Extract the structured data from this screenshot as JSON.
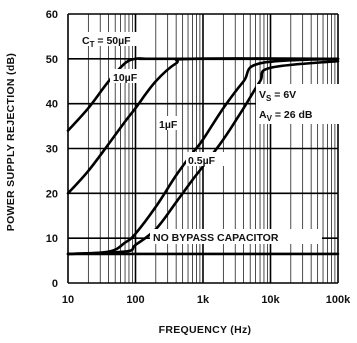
{
  "chart_data": {
    "type": "line",
    "xlabel": "FREQUENCY (Hz)",
    "ylabel": "POWER SUPPLY REJECTION (dB)",
    "x_scale": "log",
    "xlim": [
      10,
      100000
    ],
    "ylim": [
      0,
      60
    ],
    "grid": true,
    "x_ticks": [
      {
        "value": 10,
        "label": "10"
      },
      {
        "value": 100,
        "label": "100"
      },
      {
        "value": 1000,
        "label": "1k"
      },
      {
        "value": 10000,
        "label": "10k"
      },
      {
        "value": 100000,
        "label": "100k"
      }
    ],
    "y_ticks": [
      {
        "value": 0,
        "label": "0"
      },
      {
        "value": 10,
        "label": "10"
      },
      {
        "value": 20,
        "label": "20"
      },
      {
        "value": 30,
        "label": "30"
      },
      {
        "value": 40,
        "label": "40"
      },
      {
        "value": 50,
        "label": "50"
      },
      {
        "value": 60,
        "label": "60"
      }
    ],
    "series": [
      {
        "name": "CT = 50µF",
        "x": [
          10,
          20,
          40,
          70,
          100,
          150,
          200,
          100000
        ],
        "y": [
          34,
          39,
          45,
          49,
          50,
          50,
          50,
          50
        ]
      },
      {
        "name": "10µF",
        "x": [
          10,
          20,
          40,
          70,
          100,
          200,
          400,
          700,
          100000
        ],
        "y": [
          20,
          25,
          31,
          36,
          39,
          45,
          49,
          50,
          50
        ]
      },
      {
        "name": "1µF",
        "x": [
          10,
          40,
          70,
          100,
          200,
          400,
          700,
          1000,
          2000,
          4000,
          7000,
          100000
        ],
        "y": [
          6.5,
          7,
          9,
          11,
          17,
          24,
          29,
          32,
          39,
          45,
          49,
          50
        ]
      },
      {
        "name": "0.5µF",
        "x": [
          10,
          70,
          100,
          200,
          400,
          700,
          1000,
          2000,
          4000,
          7000,
          10000,
          100000
        ],
        "y": [
          6.5,
          7,
          8.5,
          12,
          18,
          23,
          26,
          32,
          39,
          45,
          48,
          49.5
        ]
      },
      {
        "name": "NO BYPASS CAPACITOR",
        "x": [
          10,
          100000
        ],
        "y": [
          6.5,
          6.5
        ]
      }
    ],
    "annotations": {
      "ct_label": "C",
      "ct_sub": "T",
      "ct_value": " = 50µF",
      "c10_label": "10µF",
      "c1_label": "1µF",
      "c05_label": "0.5µF",
      "vs_label": "V",
      "vs_sub": "S",
      "vs_value": " = 6V",
      "av_label": "A",
      "av_sub": "V",
      "av_value": " = 26 dB",
      "no_bypass_label": "NO BYPASS CAPACITOR"
    }
  }
}
